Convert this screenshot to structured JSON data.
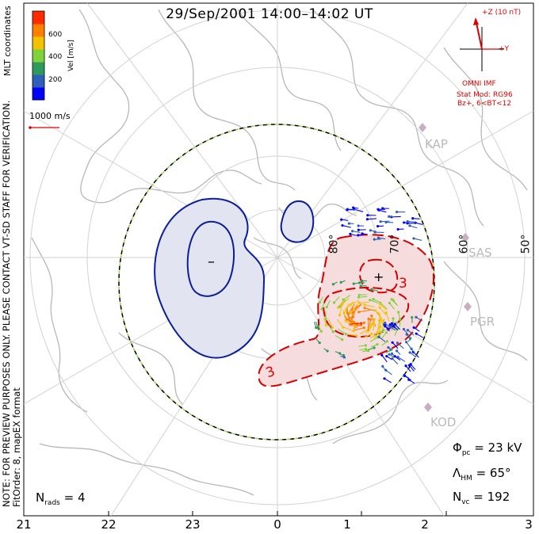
{
  "title": "29/Sep/2001 14:00–14:02 UT",
  "side_text": {
    "coords": "MLT coordinates",
    "note_line1": "NOTE: FOR PREVIEW PURPOSES ONLY. PLEASE CONTACT VT-SD STAFF FOR VERIFICATION.",
    "note_line2": "FitOrder: 8, mapEX format"
  },
  "colorbar": {
    "label": "Vel [m/s]",
    "ticks": [
      "600",
      "400",
      "200"
    ],
    "colors": [
      "#0000ff",
      "#2f5fb8",
      "#2e9a5c",
      "#7fd23b",
      "#f2c300",
      "#ff7f00",
      "#ff2b00"
    ]
  },
  "scale_vector": {
    "label": "1000 m/s",
    "color": "#e00000"
  },
  "imf": {
    "axis_z": "+Z (10 nT)",
    "axis_y": "+Y",
    "source": "OMNI IMF",
    "model": "Stat Mod: RG96",
    "condition": "Bz+, 6<BT<12",
    "color": "#e00000"
  },
  "latitude_labels": [
    "80°",
    "70°",
    "60°",
    "50°"
  ],
  "stations": [
    "KAP",
    "SAS",
    "PGR",
    "KOD"
  ],
  "contours": {
    "negative_marker": "–",
    "positive_marker": "+",
    "positive_label": "3",
    "positive_label_2": "3",
    "negative_color": "#0a1e9a",
    "positive_color": "#d40000",
    "negative_fill": "#e3e4f1",
    "positive_fill": "#f6dcdc"
  },
  "stats": {
    "phi_symbol": "Φ",
    "phi_sub": "pc",
    "phi_value": " = 23 kV",
    "lambda_symbol": "Λ",
    "lambda_sub": "HM",
    "lambda_value": " = 65°",
    "nvc_symbol": "N",
    "nvc_sub": "vc",
    "nvc_value": " = 192",
    "nrads_symbol": "N",
    "nrads_sub": "rads",
    "nrads_value": " = 4"
  },
  "mlt_ticks": [
    "21",
    "22",
    "23",
    "0",
    "1",
    "2",
    "3"
  ]
}
